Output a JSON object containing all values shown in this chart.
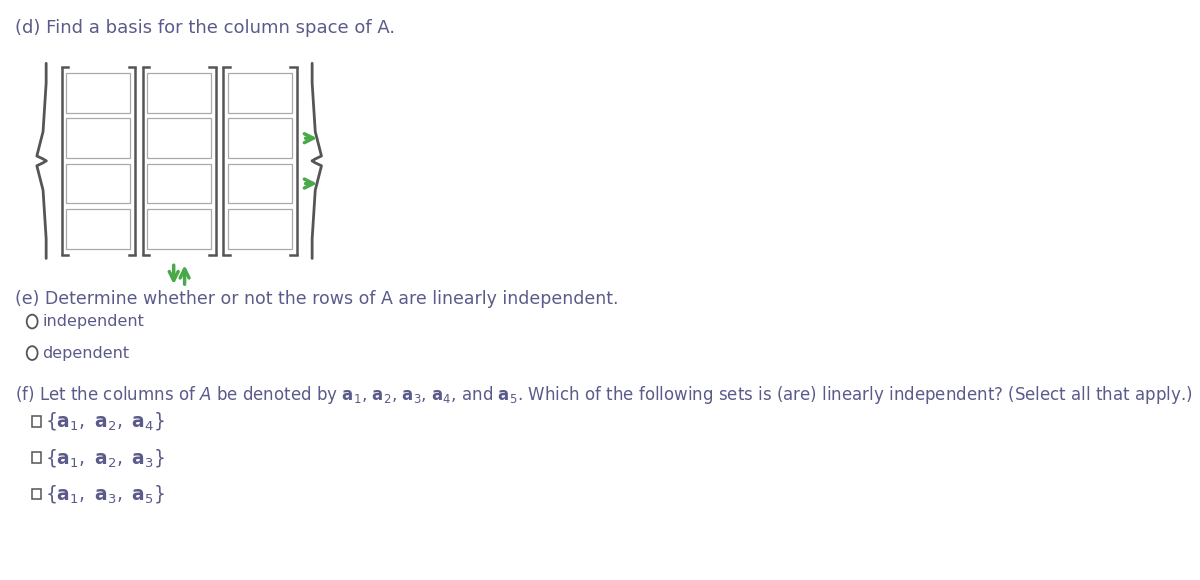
{
  "title_d": "(d) Find a basis for the column space of A.",
  "title_e": "(e) Determine whether or not the rows of A are linearly independent.",
  "radio_e1": "independent",
  "radio_e2": "dependent",
  "text_color": "#5b5b8b",
  "box_edge_color": "#aaaaaa",
  "bracket_color": "#555555",
  "arrow_color": "#4aaa4a",
  "background_color": "#ffffff",
  "num_cols": 3,
  "num_rows": 4
}
